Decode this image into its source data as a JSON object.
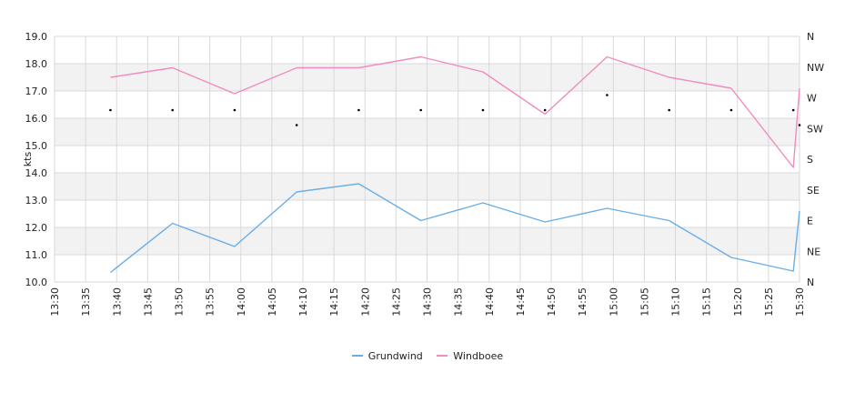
{
  "chart_data": {
    "type": "line",
    "ylabel": "kts",
    "ylim": [
      10.0,
      19.0
    ],
    "yticks": [
      "10.0",
      "11.0",
      "12.0",
      "13.0",
      "14.0",
      "15.0",
      "16.0",
      "17.0",
      "18.0",
      "19.0"
    ],
    "right_axis_labels": [
      "N",
      "NE",
      "E",
      "SE",
      "S",
      "SW",
      "W",
      "NW",
      "N"
    ],
    "xlim": [
      "13:30",
      "15:30"
    ],
    "x_tick_labels": [
      "13:30",
      "13:35",
      "13:40",
      "13:45",
      "13:50",
      "13:55",
      "14:00",
      "14:05",
      "14:10",
      "14:15",
      "14:20",
      "14:25",
      "14:30",
      "14:35",
      "14:40",
      "14:45",
      "14:50",
      "14:55",
      "15:00",
      "15:05",
      "15:10",
      "15:15",
      "15:20",
      "15:25",
      "15:30"
    ],
    "x": [
      "13:39",
      "13:49",
      "13:59",
      "14:09",
      "14:19",
      "14:29",
      "14:39",
      "14:49",
      "14:59",
      "15:09",
      "15:19",
      "15:29",
      "15:30"
    ],
    "series": [
      {
        "name": "Grundwind",
        "color": "#6aaee8",
        "values": [
          10.35,
          12.15,
          11.3,
          13.3,
          13.6,
          12.25,
          12.9,
          12.2,
          12.7,
          12.25,
          10.9,
          10.4,
          12.6
        ]
      },
      {
        "name": "Windboee",
        "color": "#f08cc0",
        "values": [
          17.5,
          17.85,
          16.9,
          17.85,
          17.85,
          18.25,
          17.7,
          16.15,
          18.25,
          17.5,
          17.1,
          14.2,
          17.1
        ]
      }
    ],
    "direction_points": [
      {
        "x": "13:39",
        "y": 16.3
      },
      {
        "x": "13:49",
        "y": 16.3
      },
      {
        "x": "13:59",
        "y": 16.3
      },
      {
        "x": "14:09",
        "y": 15.75
      },
      {
        "x": "14:19",
        "y": 16.3
      },
      {
        "x": "14:29",
        "y": 16.3
      },
      {
        "x": "14:39",
        "y": 16.3
      },
      {
        "x": "14:49",
        "y": 16.3
      },
      {
        "x": "14:59",
        "y": 16.85
      },
      {
        "x": "15:09",
        "y": 16.3
      },
      {
        "x": "15:19",
        "y": 16.3
      },
      {
        "x": "15:29",
        "y": 16.3
      },
      {
        "x": "15:30",
        "y": 15.75
      }
    ],
    "legend_position": "bottom",
    "grid": true,
    "band_color": "#f2f2f2",
    "grid_color": "#d9d9d9"
  }
}
